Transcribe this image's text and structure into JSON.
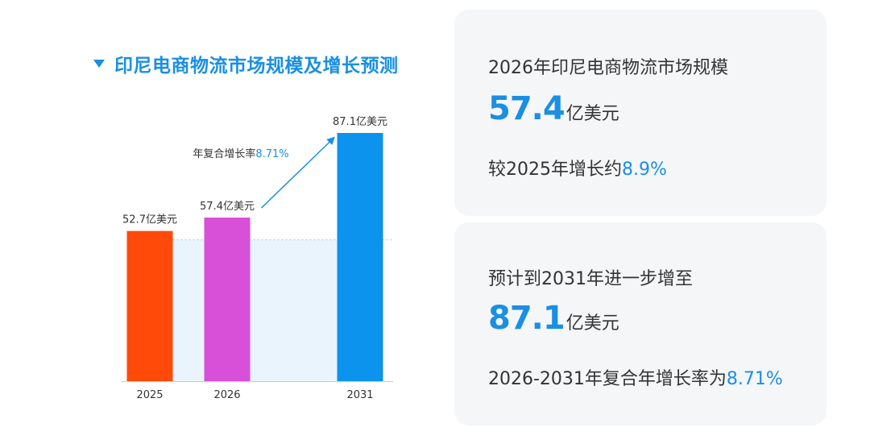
{
  "chart_data": {
    "type": "bar",
    "title": "印尼电商物流市场规模及增长预测",
    "unit": "亿美元",
    "categories": [
      "2025",
      "2026",
      "2031"
    ],
    "values": [
      52.7,
      57.4,
      87.1
    ],
    "colors": [
      "#ff4a0a",
      "#d84fd8",
      "#0b93ee"
    ],
    "data_labels": [
      "52.7亿美元",
      "57.4亿美元",
      "87.1亿美元"
    ],
    "ylim": [
      0,
      100
    ],
    "grid": false,
    "annotation": {
      "prefix": "年复合增长率",
      "value": "8.71%",
      "from": "2026",
      "to": "2031"
    },
    "reference_band": {
      "from": "2025",
      "to": "2031",
      "value": 52.7
    }
  },
  "cards": {
    "top": {
      "label": "2026年印尼电商物流市场规模",
      "number": "57.4",
      "unit": "亿美元",
      "sub_prefix": "较2025年增长约",
      "sub_value": "8.9%"
    },
    "bottom": {
      "label": "预计到2031年进一步增至",
      "number": "87.1",
      "unit": "亿美元",
      "sub_prefix": "2026-2031年复合年增长率为",
      "sub_value": "8.71%"
    }
  },
  "colors": {
    "accent": "#1a8fe3",
    "band": "#eaf4fc"
  }
}
